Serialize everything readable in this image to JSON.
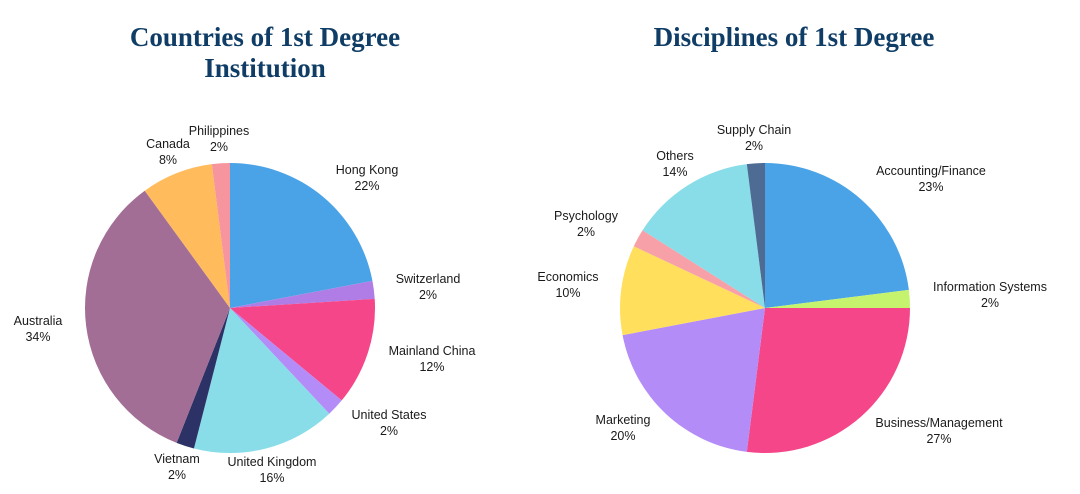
{
  "chart_data": [
    {
      "type": "pie",
      "title": "Countries of 1st Degree Institution",
      "title_lines": [
        "Countries of 1st Degree",
        "Institution"
      ],
      "start": "12 o'clock, clockwise",
      "slices": [
        {
          "label": "Hong Kong",
          "value": 22,
          "pct": "22%",
          "color": "#4aa3e6"
        },
        {
          "label": "Switzerland",
          "value": 2,
          "pct": "2%",
          "color": "#b07ce6"
        },
        {
          "label": "Mainland China",
          "value": 12,
          "pct": "12%",
          "color": "#f5468a"
        },
        {
          "label": "United States",
          "value": 2,
          "pct": "2%",
          "color": "#b38cf7"
        },
        {
          "label": "United Kingdom",
          "value": 16,
          "pct": "16%",
          "color": "#88dde8"
        },
        {
          "label": "Vietnam",
          "value": 2,
          "pct": "2%",
          "color": "#2d3266"
        },
        {
          "label": "Australia",
          "value": 34,
          "pct": "34%",
          "color": "#a36e96"
        },
        {
          "label": "Canada",
          "value": 8,
          "pct": "8%",
          "color": "#ffbb5c"
        },
        {
          "label": "Philippines",
          "value": 2,
          "pct": "2%",
          "color": "#f7959e"
        }
      ]
    },
    {
      "type": "pie",
      "title": "Disciplines of 1st Degree",
      "title_lines": [
        "Disciplines of 1st Degree"
      ],
      "start": "12 o'clock, clockwise",
      "slices": [
        {
          "label": "Accounting/Finance",
          "value": 23,
          "pct": "23%",
          "color": "#4aa3e6"
        },
        {
          "label": "Information Systems",
          "value": 2,
          "pct": "2%",
          "color": "#c6f36e"
        },
        {
          "label": "Business/Management",
          "value": 27,
          "pct": "27%",
          "color": "#f5468a"
        },
        {
          "label": "Marketing",
          "value": 20,
          "pct": "20%",
          "color": "#b38cf7"
        },
        {
          "label": "Economics",
          "value": 10,
          "pct": "10%",
          "color": "#ffdf5c"
        },
        {
          "label": "Psychology",
          "value": 2,
          "pct": "2%",
          "color": "#f7a0a8"
        },
        {
          "label": "Others",
          "value": 14,
          "pct": "14%",
          "color": "#88dde8"
        },
        {
          "label": "Supply Chain",
          "value": 2,
          "pct": "2%",
          "color": "#4e6b94"
        }
      ]
    }
  ]
}
